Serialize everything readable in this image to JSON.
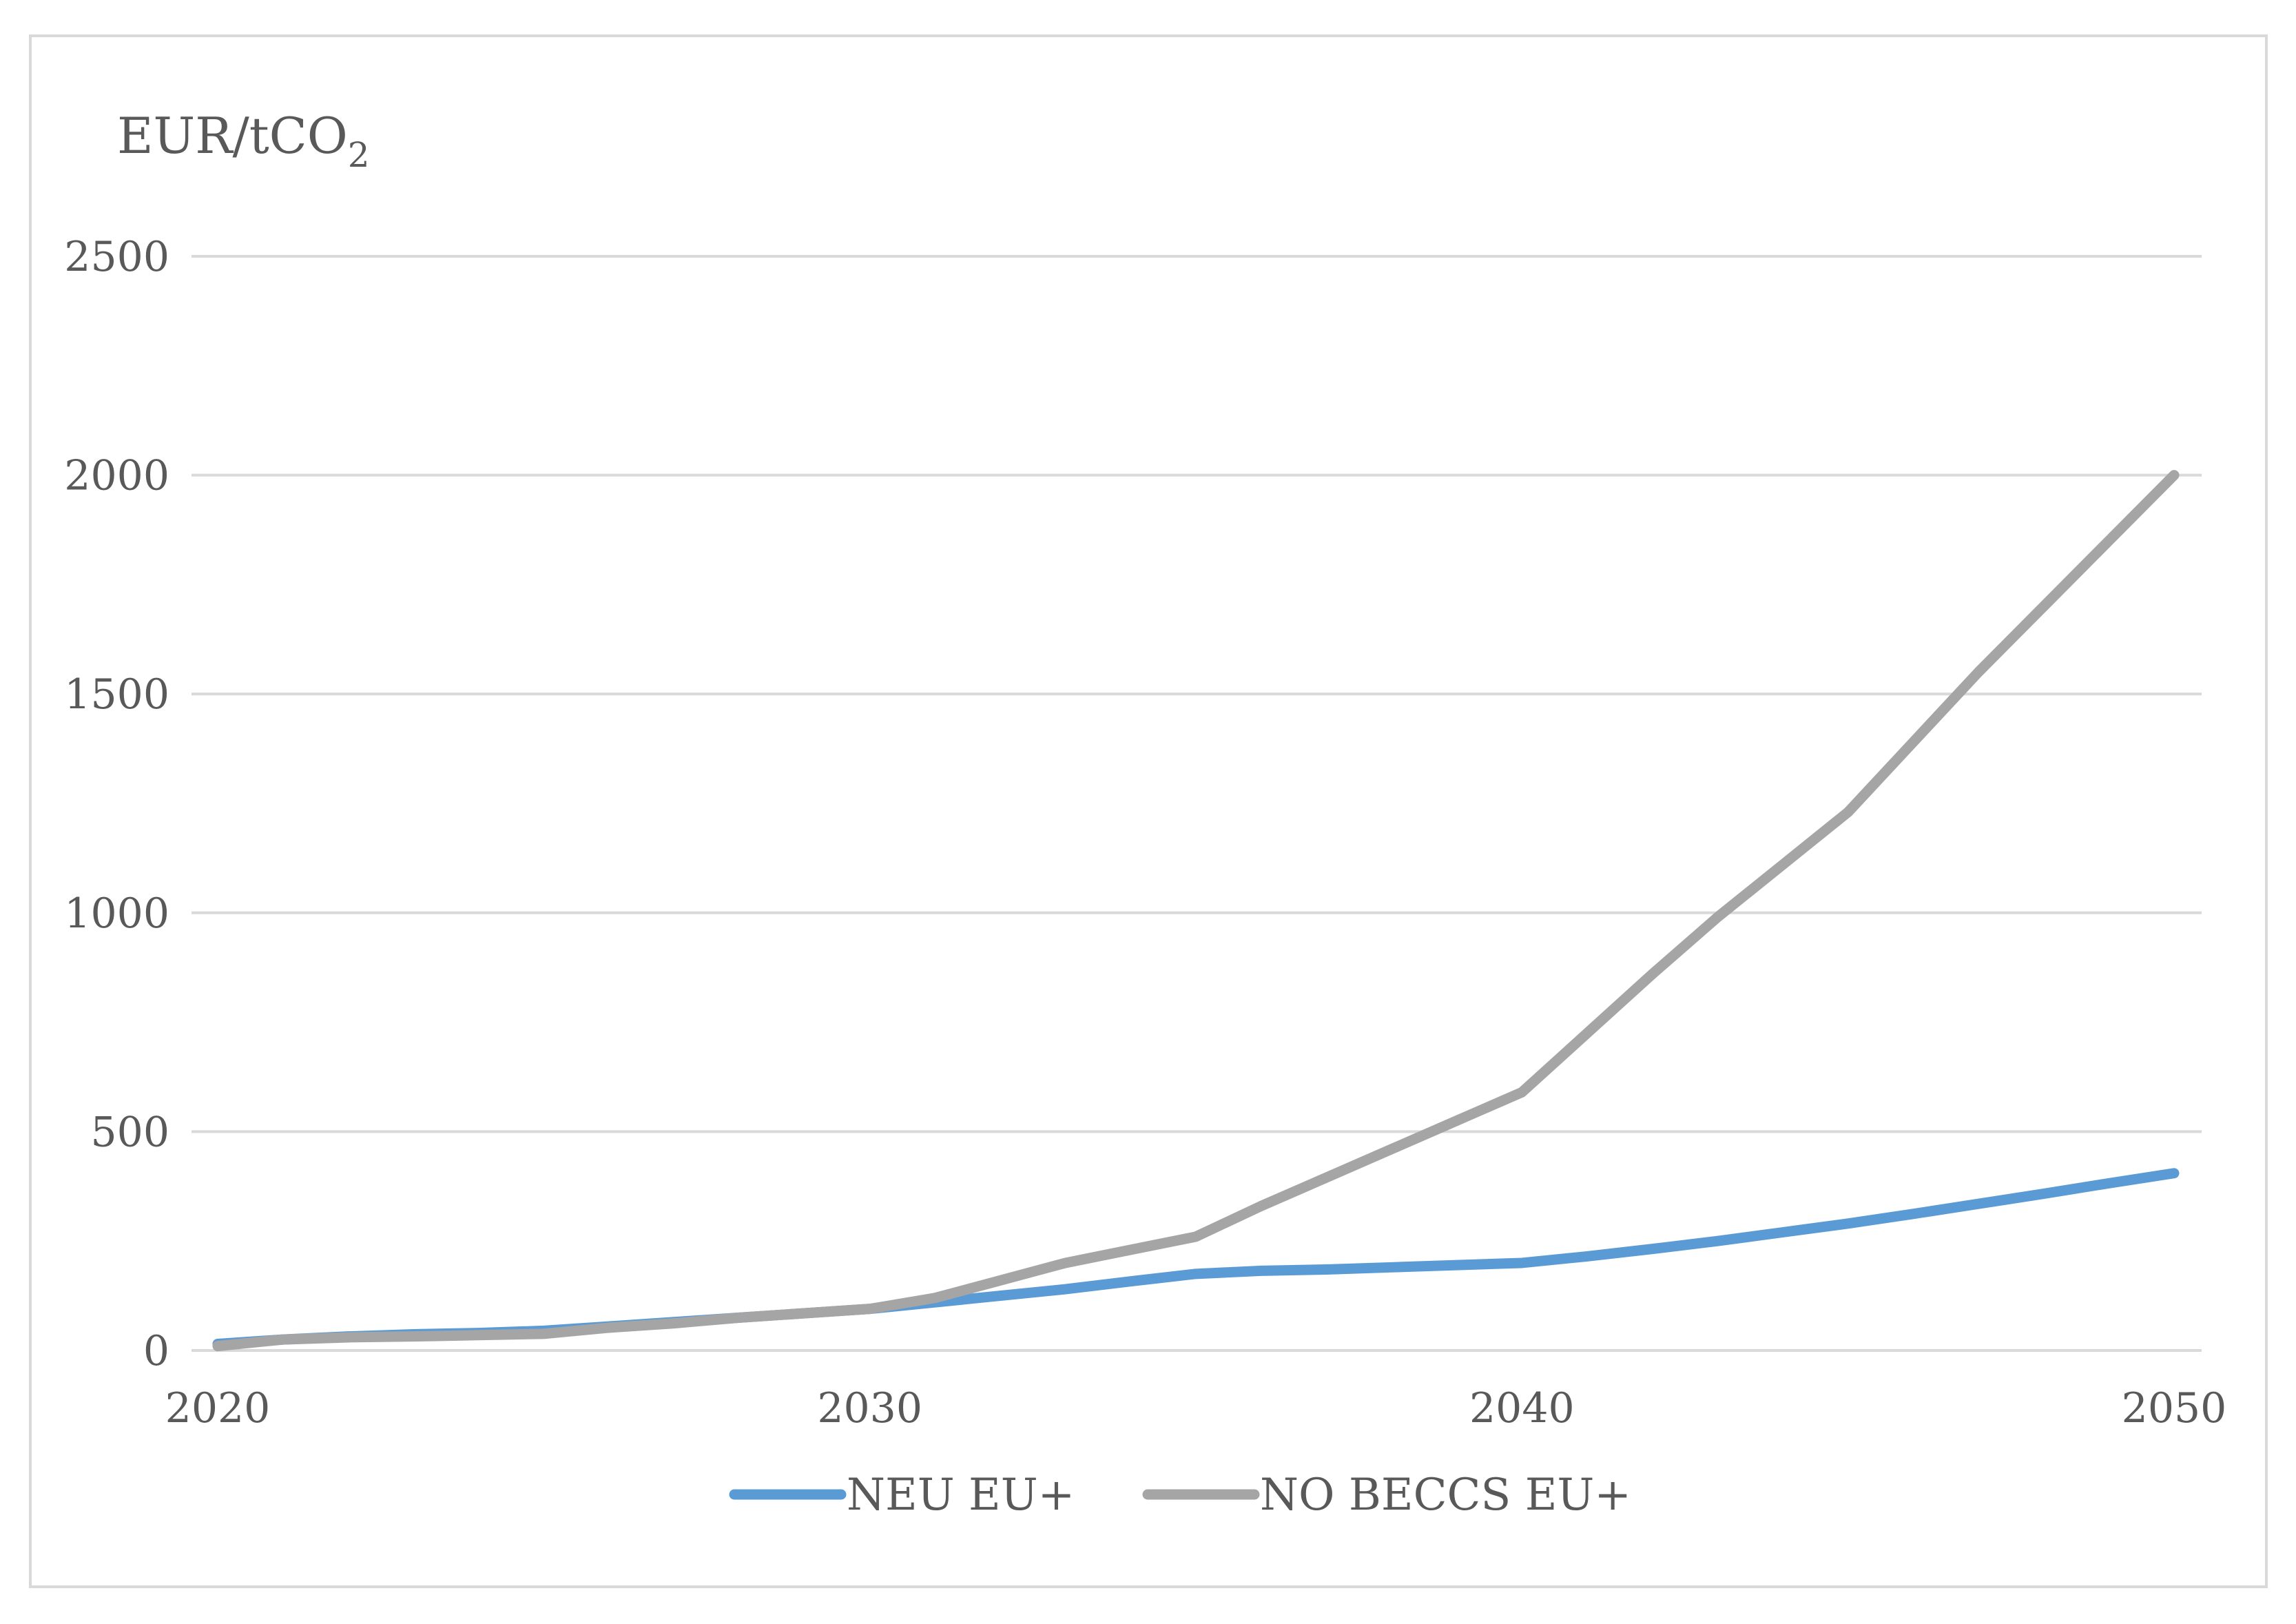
{
  "chart_data": {
    "type": "line",
    "unit_label": {
      "main": "EUR/tCO",
      "subscript": "2"
    },
    "x": [
      2020,
      2021,
      2022,
      2023,
      2024,
      2025,
      2026,
      2027,
      2028,
      2029,
      2030,
      2031,
      2032,
      2033,
      2034,
      2035,
      2036,
      2037,
      2038,
      2039,
      2040,
      2041,
      2042,
      2043,
      2044,
      2045,
      2046,
      2047,
      2048,
      2049,
      2050
    ],
    "series": [
      {
        "name": "NEU EU+",
        "color": "#5b9bd5",
        "values": [
          15,
          25,
          32,
          37,
          40,
          45,
          55,
          65,
          75,
          85,
          95,
          110,
          125,
          140,
          158,
          175,
          182,
          185,
          190,
          195,
          200,
          215,
          232,
          250,
          270,
          290,
          312,
          335,
          358,
          382,
          405
        ]
      },
      {
        "name": "NO BECCS EU+",
        "color": "#a5a5a5",
        "values": [
          10,
          25,
          30,
          32,
          35,
          38,
          52,
          62,
          75,
          85,
          95,
          120,
          160,
          200,
          230,
          260,
          330,
          395,
          460,
          525,
          590,
          725,
          860,
          990,
          1110,
          1230,
          1390,
          1550,
          1700,
          1850,
          2000
        ]
      }
    ],
    "x_ticks": [
      "2020",
      "2030",
      "2040",
      "2050"
    ],
    "y_ticks": [
      "0",
      "500",
      "1000",
      "1500",
      "2000",
      "2500"
    ],
    "xlim": [
      2020,
      2050
    ],
    "ylim": [
      0,
      2500
    ],
    "grid": "horizontal",
    "legend_position": "bottom",
    "colors": {
      "grid": "#d9d9d9",
      "text": "#595959",
      "border": "#d9d9d9"
    }
  }
}
